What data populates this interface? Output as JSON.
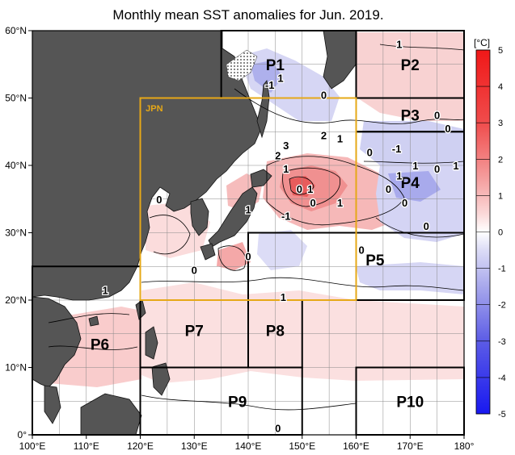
{
  "title": "Monthly mean SST anomalies for Jun. 2019.",
  "colors": {
    "land": "#555555",
    "sea_background": "#ffffff",
    "grid": "#888888",
    "box_black": "#000000",
    "box_jpn": "#e6a817",
    "positive_light": "#f8d2d2",
    "positive_mid": "#f2a0a0",
    "positive_strong": "#e34848",
    "negative_light": "#dcdcf8",
    "negative_mid": "#aaaaee"
  },
  "axes": {
    "lon_min": 100,
    "lon_max": 180,
    "lat_min": 0,
    "lat_max": 60,
    "lon_ticks": [
      "100°E",
      "110°E",
      "120°E",
      "130°E",
      "140°E",
      "150°E",
      "160°E",
      "170°E",
      "180°"
    ],
    "lat_ticks": [
      "0°",
      "10°N",
      "20°N",
      "30°N",
      "40°N",
      "50°N",
      "60°N"
    ]
  },
  "regions": [
    {
      "name": "P1",
      "lon": [
        135,
        160
      ],
      "lat": [
        50,
        60
      ],
      "label_at": [
        145,
        55
      ]
    },
    {
      "name": "P2",
      "lon": [
        160,
        180
      ],
      "lat": [
        50,
        60
      ],
      "label_at": [
        170,
        55
      ]
    },
    {
      "name": "P3",
      "lon": [
        160,
        180
      ],
      "lat": [
        45,
        50
      ],
      "label_at": [
        170,
        47.5
      ]
    },
    {
      "name": "P4",
      "lon": [
        160,
        180
      ],
      "lat": [
        30,
        45
      ],
      "label_at": [
        170,
        37.5
      ]
    },
    {
      "name": "P5",
      "lon": [
        140,
        180
      ],
      "lat": [
        20,
        30
      ],
      "label_at": [
        163.5,
        26
      ]
    },
    {
      "name": "P6",
      "lon": [
        100,
        120
      ],
      "lat": [
        0,
        25
      ],
      "label_at": [
        112.5,
        13.5
      ]
    },
    {
      "name": "P7",
      "lon": [
        120,
        140
      ],
      "lat": [
        10,
        20
      ],
      "label_at": [
        130,
        15.5
      ]
    },
    {
      "name": "P8",
      "lon": [
        140,
        150
      ],
      "lat": [
        10,
        20
      ],
      "label_at": [
        145,
        15.5
      ]
    },
    {
      "name": "P9",
      "lon": [
        120,
        150
      ],
      "lat": [
        0,
        10
      ],
      "label_at": [
        138,
        5
      ]
    },
    {
      "name": "P10",
      "lon": [
        160,
        180
      ],
      "lat": [
        0,
        10
      ],
      "label_at": [
        170,
        5
      ]
    }
  ],
  "jpn_box": {
    "name": "JPN",
    "lon": [
      120,
      160
    ],
    "lat": [
      20,
      50
    ],
    "label_at": [
      121,
      48.5
    ]
  },
  "contour_labels": [
    {
      "text": "1",
      "at": [
        168,
        58
      ]
    },
    {
      "text": "-1",
      "at": [
        144,
        52
      ]
    },
    {
      "text": "1",
      "at": [
        146,
        53
      ]
    },
    {
      "text": "0",
      "at": [
        154,
        50.5
      ]
    },
    {
      "text": "0",
      "at": [
        175,
        47.5
      ]
    },
    {
      "text": "0",
      "at": [
        177,
        45.5
      ]
    },
    {
      "text": "2",
      "at": [
        154,
        44.5
      ]
    },
    {
      "text": "1",
      "at": [
        157,
        44
      ]
    },
    {
      "text": "3",
      "at": [
        147,
        43
      ]
    },
    {
      "text": "2",
      "at": [
        145.5,
        41.5
      ]
    },
    {
      "text": "1",
      "at": [
        147,
        39.5
      ]
    },
    {
      "text": "0",
      "at": [
        162.5,
        42
      ]
    },
    {
      "text": "-1",
      "at": [
        167.5,
        42.5
      ]
    },
    {
      "text": "1",
      "at": [
        171,
        40
      ]
    },
    {
      "text": "0",
      "at": [
        166,
        36.5
      ]
    },
    {
      "text": "1",
      "at": [
        168,
        38.5
      ]
    },
    {
      "text": "0",
      "at": [
        175,
        39.5
      ]
    },
    {
      "text": "1",
      "at": [
        178.5,
        40
      ]
    },
    {
      "text": "0",
      "at": [
        169,
        34.5
      ]
    },
    {
      "text": "0",
      "at": [
        173,
        31
      ]
    },
    {
      "text": "0",
      "at": [
        123.5,
        35
      ]
    },
    {
      "text": "1",
      "at": [
        140,
        33.5
      ]
    },
    {
      "text": "0",
      "at": [
        149.5,
        36.5
      ]
    },
    {
      "text": "1",
      "at": [
        151.5,
        36.5
      ]
    },
    {
      "text": "0",
      "at": [
        152,
        34.5
      ]
    },
    {
      "text": "1",
      "at": [
        157,
        34.5
      ]
    },
    {
      "text": "-1",
      "at": [
        147,
        32.5
      ]
    },
    {
      "text": "0",
      "at": [
        140,
        26.5
      ]
    },
    {
      "text": "0",
      "at": [
        130,
        24.5
      ]
    },
    {
      "text": "0",
      "at": [
        161,
        27.5
      ]
    },
    {
      "text": "1",
      "at": [
        146.5,
        20.5
      ]
    },
    {
      "text": "1",
      "at": [
        113.5,
        21.5
      ]
    },
    {
      "text": "0",
      "at": [
        145.5,
        1
      ]
    }
  ],
  "colorbar": {
    "unit": "[°C]",
    "labels": [
      "5",
      "4",
      "3",
      "2",
      "1",
      "0",
      "-1",
      "-2",
      "-3",
      "-4",
      "-5"
    ],
    "stops": [
      {
        "value": 5,
        "color": "#f01818"
      },
      {
        "value": 3,
        "color": "#f04c4c"
      },
      {
        "value": 1.5,
        "color": "#f49c9c"
      },
      {
        "value": 0.5,
        "color": "#fbd8d8"
      },
      {
        "value": 0,
        "color": "#ffffff"
      },
      {
        "value": -0.5,
        "color": "#dcdcf6"
      },
      {
        "value": -1.5,
        "color": "#a8a8ec"
      },
      {
        "value": -3,
        "color": "#5c5ce6"
      },
      {
        "value": -5,
        "color": "#1818f0"
      }
    ]
  }
}
